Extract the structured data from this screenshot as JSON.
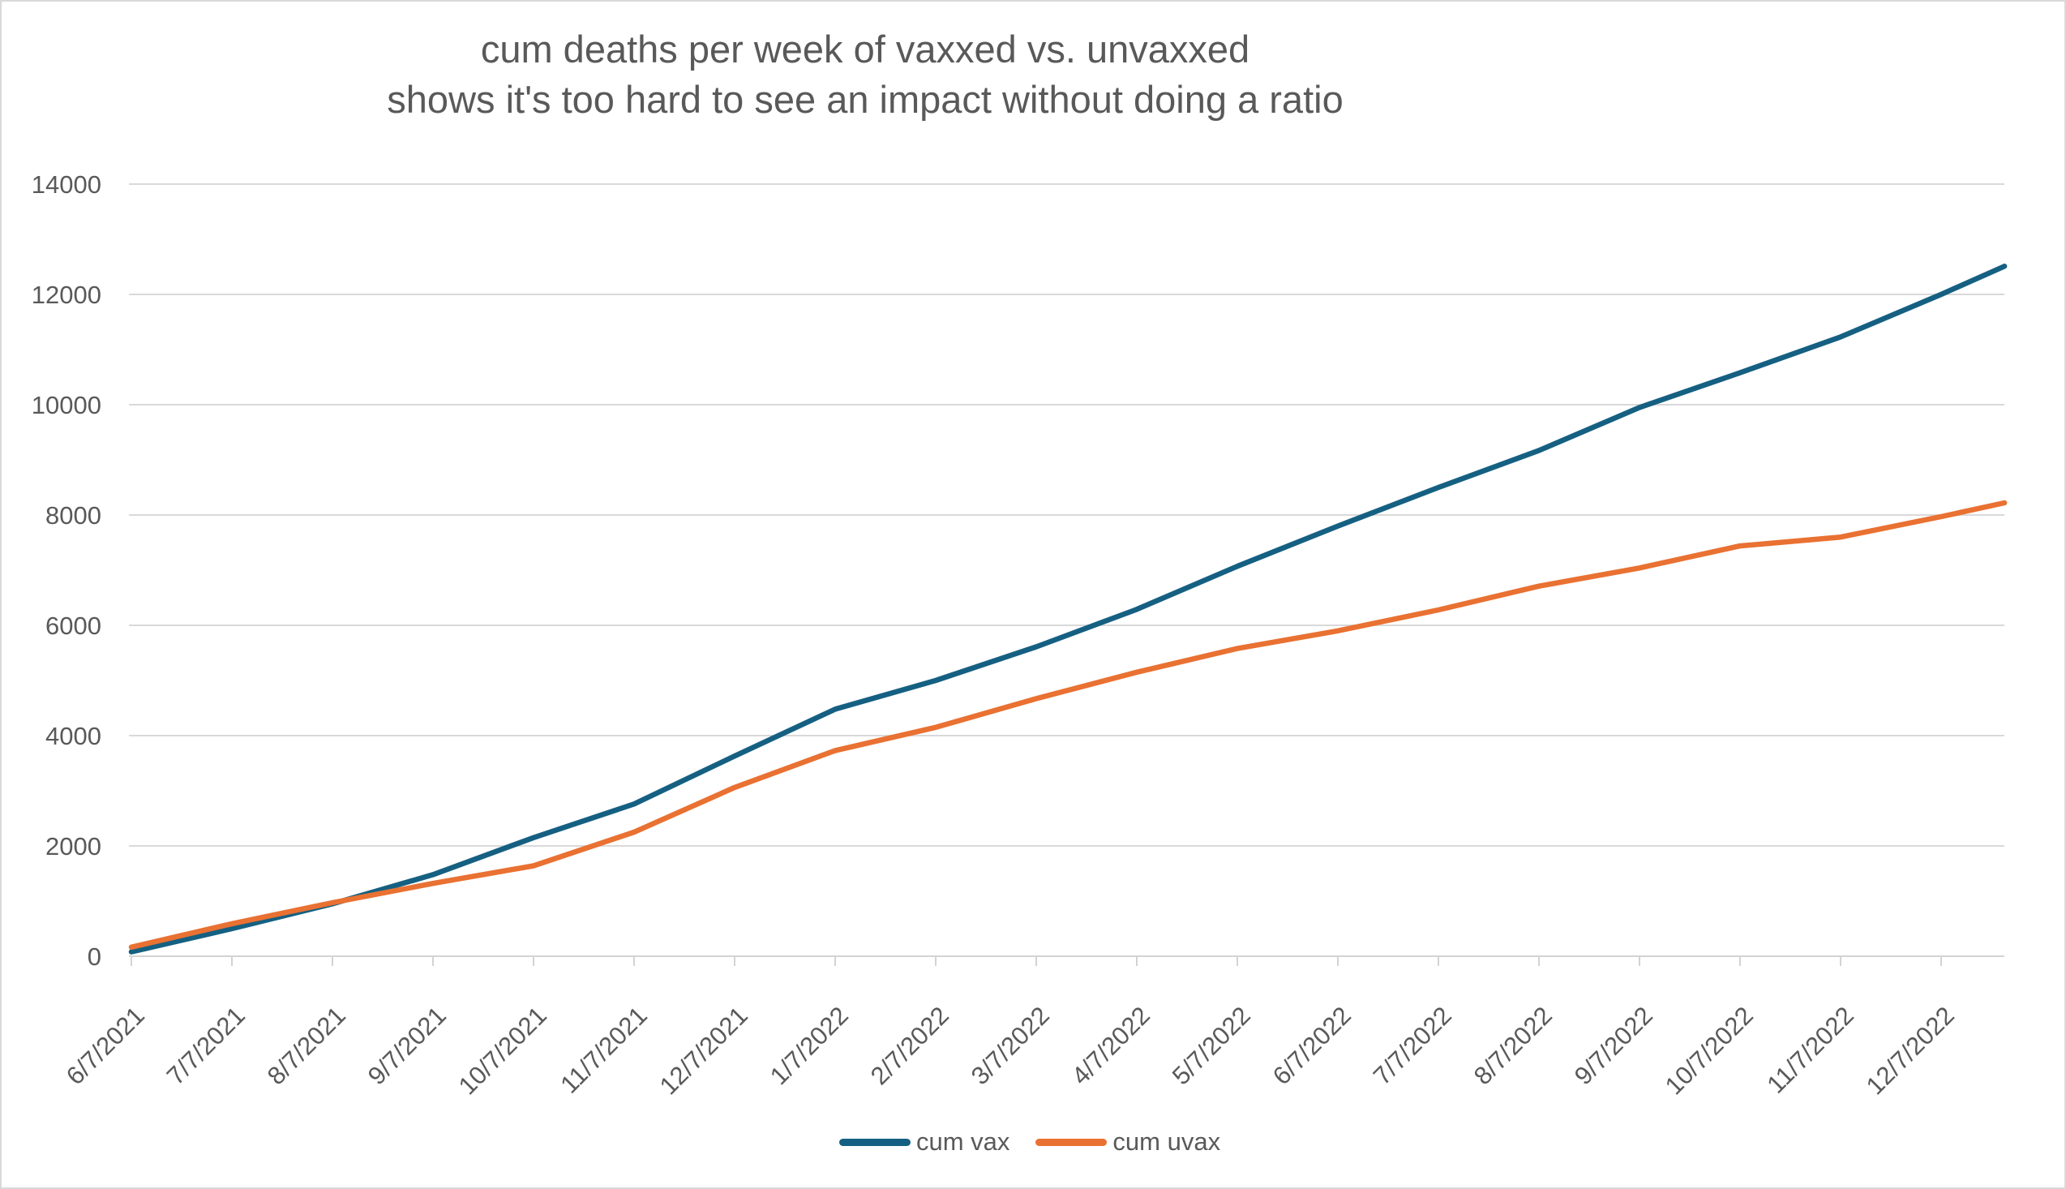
{
  "chart_data": {
    "type": "line",
    "title": "cum deaths per week of vaxxed vs. unvaxxed",
    "subtitle": "shows it's too hard to see an impact without doing a ratio",
    "x_tick_labels": [
      "6/7/2021",
      "7/7/2021",
      "8/7/2021",
      "9/7/2021",
      "10/7/2021",
      "11/7/2021",
      "12/7/2021",
      "1/7/2022",
      "2/7/2022",
      "3/7/2022",
      "4/7/2022",
      "5/7/2022",
      "6/7/2022",
      "7/7/2022",
      "8/7/2022",
      "9/7/2022",
      "10/7/2022",
      "11/7/2022",
      "12/7/2022"
    ],
    "x_month_index": [
      0,
      1,
      2,
      3,
      4,
      5,
      6,
      7,
      8,
      9,
      10,
      11,
      12,
      13,
      14,
      15,
      16,
      17,
      18,
      18.63
    ],
    "y_ticks": [
      0,
      2000,
      4000,
      6000,
      8000,
      10000,
      12000,
      14000
    ],
    "ylim": [
      0,
      14000
    ],
    "grid": "horizontal",
    "legend_position": "bottom-center",
    "series": [
      {
        "name": "cum vax",
        "color": "#156082",
        "values": [
          80,
          500,
          950,
          1480,
          2150,
          2760,
          3630,
          4480,
          5000,
          5610,
          6290,
          7070,
          7800,
          8500,
          9170,
          9950,
          10580,
          11230,
          12000,
          12510
        ]
      },
      {
        "name": "cum uvax",
        "color": "#E97132",
        "values": [
          165,
          590,
          970,
          1320,
          1640,
          2250,
          3060,
          3730,
          4150,
          4670,
          5150,
          5580,
          5900,
          6280,
          6710,
          7040,
          7440,
          7600,
          7970,
          8220
        ]
      }
    ]
  },
  "colors": {
    "gridline": "#D9D9D9",
    "axis_line": "#D3D3D3",
    "text": "#595959",
    "background": "#FFFFFF"
  }
}
